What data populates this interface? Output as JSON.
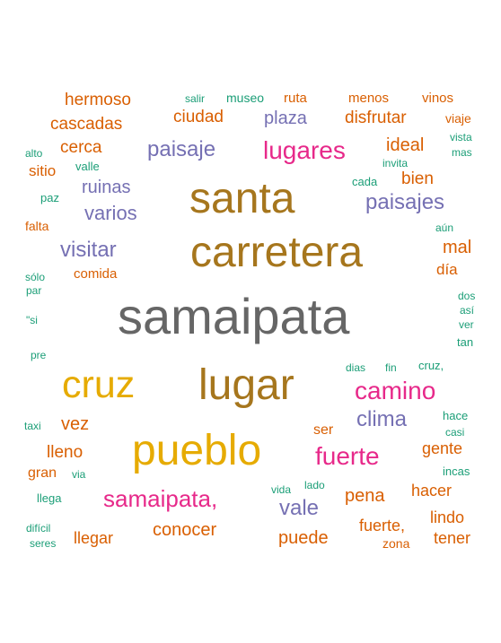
{
  "colors": {
    "gray": "#666666",
    "brown": "#a6761d",
    "gold": "#e6ab02",
    "magenta": "#e7298a",
    "purple": "#7570b3",
    "orange": "#d95f02",
    "teal": "#1b9e77"
  },
  "words": {
    "samaipata": "samaipata",
    "carretera": "carretera",
    "santa": "santa",
    "lugar": "lugar",
    "pueblo": "pueblo",
    "cruz": "cruz",
    "lugares": "lugares",
    "camino": "camino",
    "fuerte": "fuerte",
    "samaipata_comma": "samaipata,",
    "paisajes": "paisajes",
    "paisaje": "paisaje",
    "visitar": "visitar",
    "clima": "clima",
    "vale": "vale",
    "varios": "varios",
    "ruinas": "ruinas",
    "plaza": "plaza",
    "ideal": "ideal",
    "mal": "mal",
    "hermoso": "hermoso",
    "cascadas": "cascadas",
    "ciudad": "ciudad",
    "disfrutar": "disfrutar",
    "cerca": "cerca",
    "bien": "bien",
    "vez": "vez",
    "lleno": "lleno",
    "pena": "pena",
    "conocer": "conocer",
    "llegar": "llegar",
    "puede": "puede",
    "fuerte_comma": "fuerte,",
    "gente": "gente",
    "hacer": "hacer",
    "lindo": "lindo",
    "tener": "tener",
    "dia": "día",
    "sitio": "sitio",
    "gran": "gran",
    "ser": "ser",
    "comida": "comida",
    "ruta": "ruta",
    "menos": "menos",
    "vinos": "vinos",
    "viaje": "viaje",
    "falta": "falta",
    "zona": "zona",
    "salir": "salir",
    "museo": "museo",
    "vista": "vista",
    "alto": "alto",
    "valle": "valle",
    "mas": "mas",
    "invita": "invita",
    "cada": "cada",
    "paz": "paz",
    "aun": "aún",
    "solo": "sólo",
    "par": "par",
    "dos": "dos",
    "asi": "así",
    "si": "\"si",
    "ver": "ver",
    "tan": "tan",
    "pre": "pre",
    "dias": "dias",
    "fin": "fin",
    "cruz_comma": "cruz,",
    "hace": "hace",
    "taxi": "taxi",
    "casi": "casi",
    "incas": "incas",
    "via": "via",
    "lado": "lado",
    "vida": "vida",
    "llega": "llega",
    "dificil": "difícil",
    "seres": "seres"
  }
}
